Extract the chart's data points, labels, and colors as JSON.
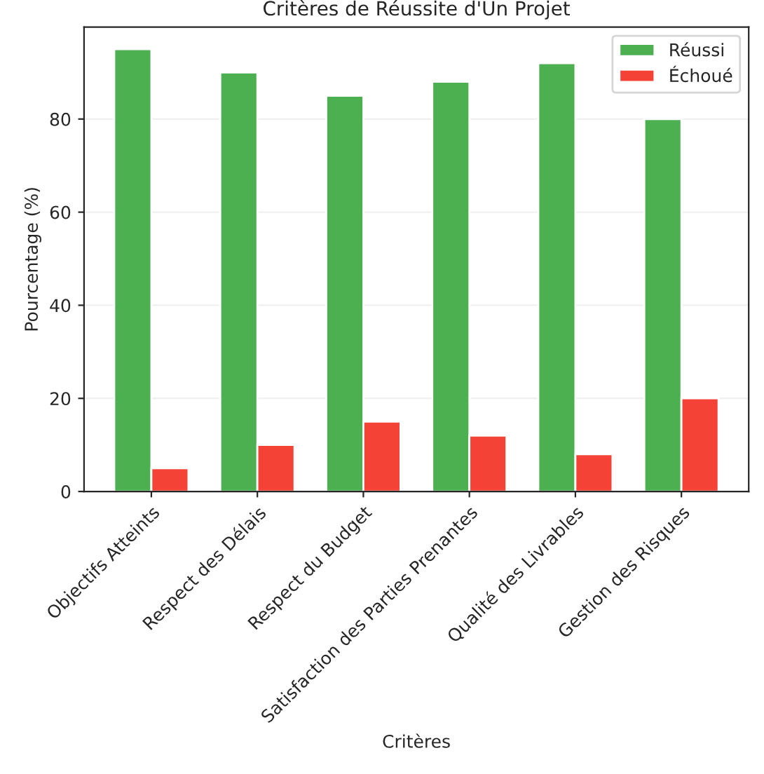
{
  "chart_data": {
    "type": "bar",
    "title": "Critères de Réussite d'Un Projet",
    "xlabel": "Critères",
    "ylabel": "Pourcentage (%)",
    "categories": [
      "Objectifs Atteints",
      "Respect des Délais",
      "Respect du Budget",
      "Satisfaction des Parties Prenantes",
      "Qualité des Livrables",
      "Gestion des Risques"
    ],
    "series": [
      {
        "name": "Réussi",
        "color": "#4caf50",
        "values": [
          95,
          90,
          85,
          88,
          92,
          80
        ]
      },
      {
        "name": "Échoué",
        "color": "#f44336",
        "values": [
          5,
          10,
          15,
          12,
          8,
          20
        ]
      }
    ],
    "ylim": [
      0,
      99.75
    ],
    "yticks": [
      0,
      20,
      40,
      60,
      80
    ],
    "grid": "y",
    "legend": "top right"
  }
}
